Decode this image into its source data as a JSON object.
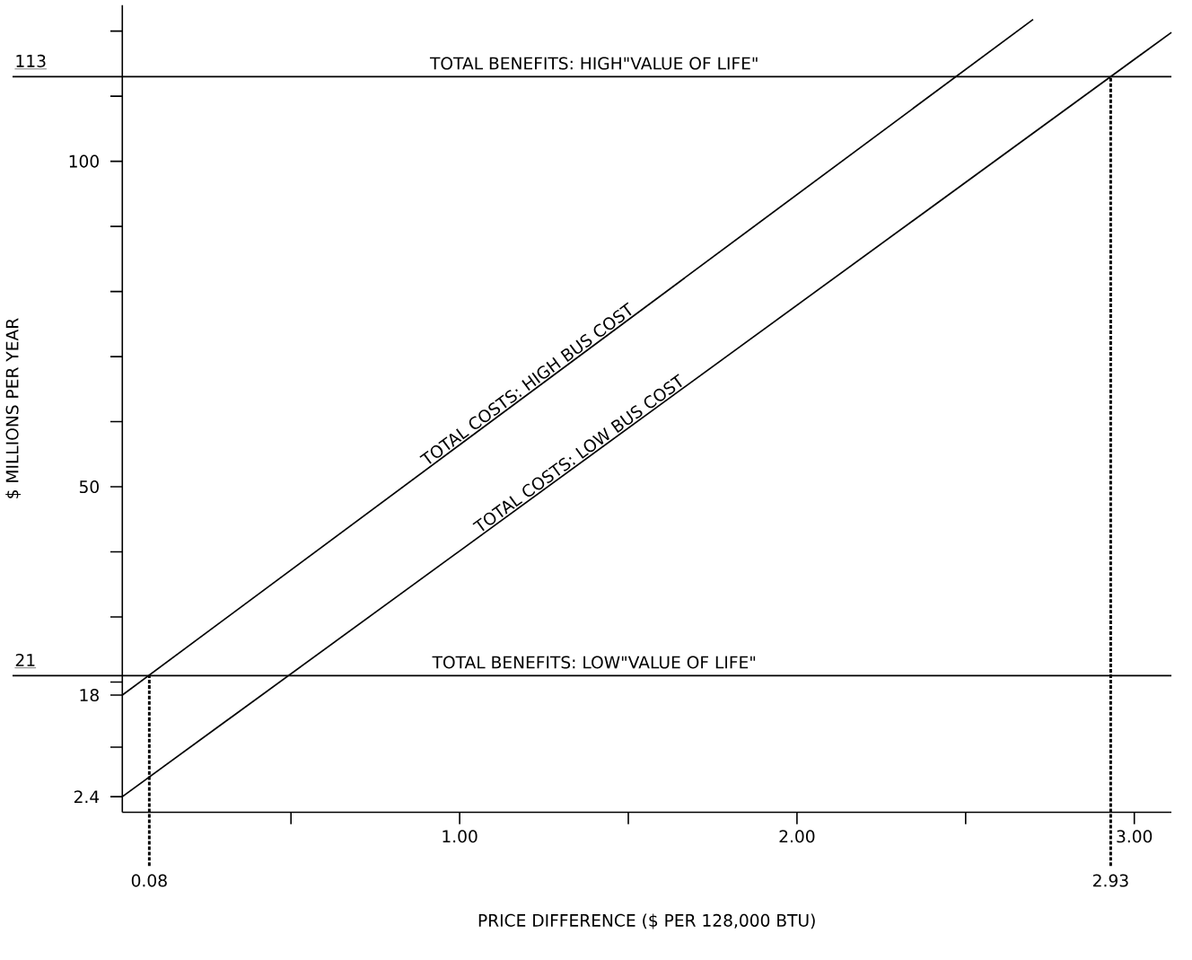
{
  "chart_data": {
    "type": "line",
    "xlabel": "PRICE DIFFERENCE  ($ PER 128,000 BTU)",
    "ylabel": "$ MILLIONS PER YEAR",
    "xlim": [
      0,
      3.11
    ],
    "ylim": [
      0,
      124
    ],
    "xticks": [
      {
        "value": 0.5,
        "label": null
      },
      {
        "value": 1,
        "label": "1.00"
      },
      {
        "value": 1.5,
        "label": null
      },
      {
        "value": 2,
        "label": "2.00"
      },
      {
        "value": 2.5,
        "label": null
      },
      {
        "value": 3,
        "label": "3.00"
      }
    ],
    "yticks": [
      {
        "value": 2.4,
        "label": "2.4"
      },
      {
        "value": 10,
        "label": null
      },
      {
        "value": 18,
        "label": "18"
      },
      {
        "value": 20,
        "label": null
      },
      {
        "value": 30,
        "label": null
      },
      {
        "value": 40,
        "label": null
      },
      50,
      {
        "value": 60,
        "label": null
      },
      {
        "value": 70,
        "label": null
      },
      {
        "value": 80,
        "label": null
      },
      {
        "value": 90,
        "label": null
      },
      100,
      {
        "value": 110,
        "label": null
      },
      {
        "value": 120,
        "label": null
      }
    ],
    "series": [
      {
        "name": "TOTAL COSTS: HIGH BUS COST",
        "color": "#000000",
        "x": [
          0,
          2.7
        ],
        "values": [
          18,
          121.8
        ]
      },
      {
        "name": "TOTAL COSTS:  LOW BUS COST",
        "color": "#000000",
        "x": [
          0,
          3.11
        ],
        "values": [
          2.4,
          119.8
        ]
      }
    ],
    "ref_lines": [
      {
        "axis": "y",
        "value": 113,
        "label": "TOTAL BENEFITS: HIGH\"VALUE OF LIFE\"",
        "color": "#000000",
        "line_style": "solid"
      },
      {
        "axis": "y",
        "value": 21,
        "label": "TOTAL BENEFITS: LOW\"VALUE OF LIFE\"",
        "color": "#000000",
        "line_style": "solid"
      },
      {
        "axis": "x",
        "value": 0.08,
        "label": "0.08",
        "color": "#000000",
        "line_style": "dotted"
      },
      {
        "axis": "x",
        "value": 2.93,
        "label": "2.93",
        "color": "#000000",
        "line_style": "dotted"
      }
    ],
    "annotations": [
      {
        "text": "113",
        "y": 113
      },
      {
        "text": "21",
        "y": 21
      }
    ],
    "grid": false,
    "marker": "none",
    "line_style": "solid"
  }
}
